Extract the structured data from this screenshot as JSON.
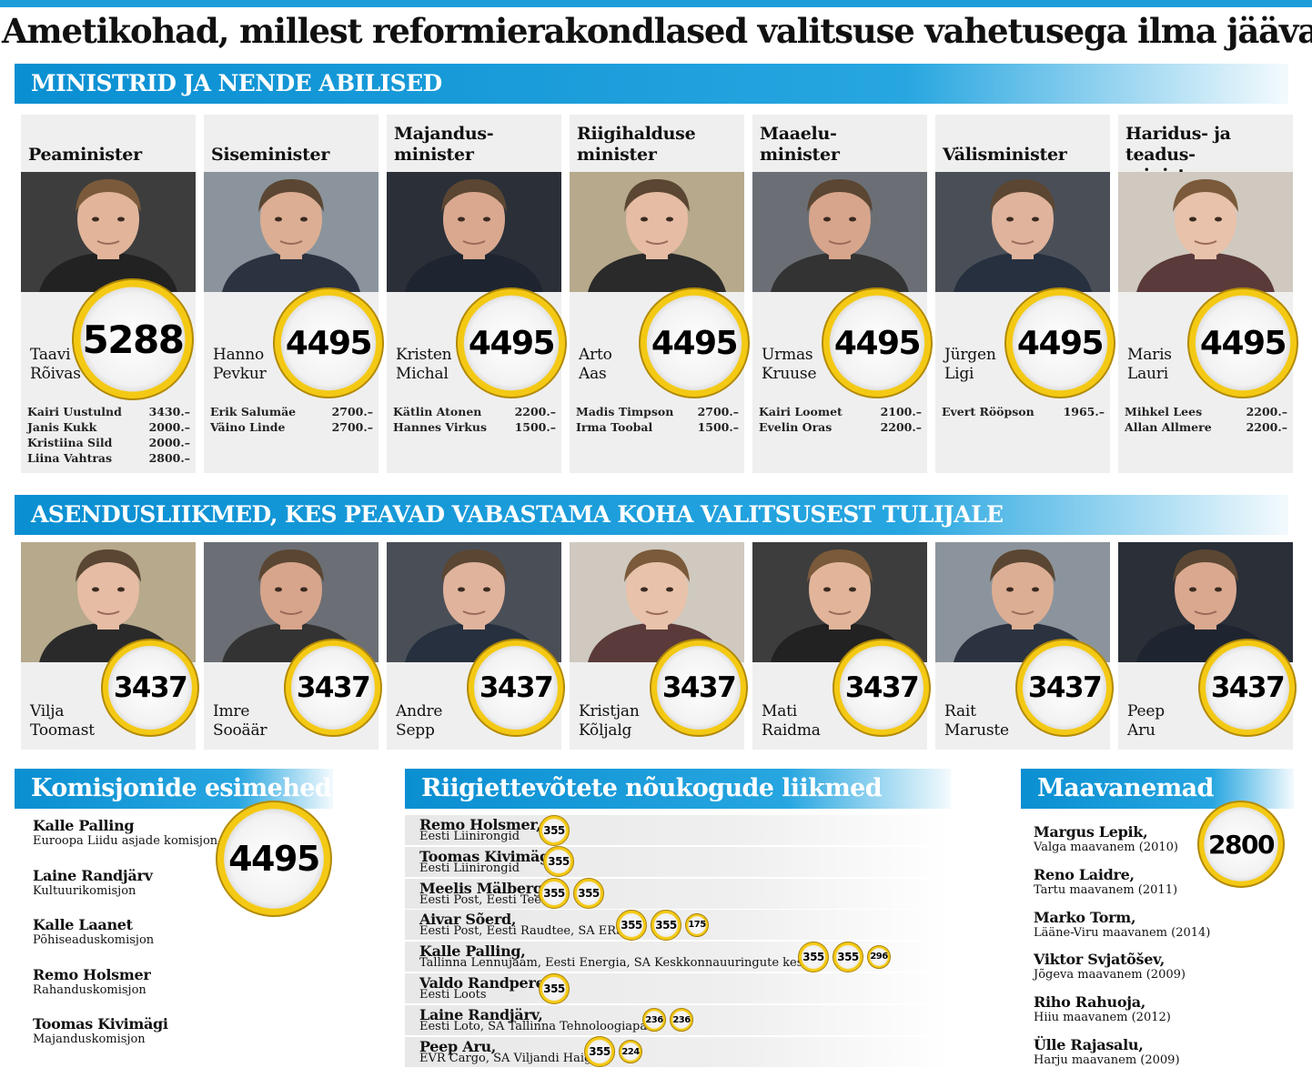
{
  "title": "Ametikohad, millest reformierakondlased valitsuse vahetusega ilma jäävad",
  "sections": {
    "ministers": "MINISTRID JA NENDE ABILISED",
    "substitutes": "ASENDUSLIIKMED, KES PEAVAD VABASTAMA KOHA VALITSUSEST TULIJALE",
    "committees": "Komisjonide esimehed",
    "boards": "Riigiettevõtete nõukogude liikmed",
    "governors": "Maavanemad"
  },
  "ministers": [
    {
      "role": "Peaminister",
      "name1": "Taavi",
      "name2": "Rõivas",
      "salary": "5288",
      "deputies": [
        {
          "name": "Kairi Uustulnd",
          "amount": "3430.–"
        },
        {
          "name": "Janis Kukk",
          "amount": "2000.–"
        },
        {
          "name": "Kristiina Sild",
          "amount": "2000.–"
        },
        {
          "name": "Liina Vahtras",
          "amount": "2800.–"
        }
      ]
    },
    {
      "role": "Siseminister",
      "name1": "Hanno",
      "name2": "Pevkur",
      "salary": "4495",
      "deputies": [
        {
          "name": "Erik Salumäe",
          "amount": "2700.–"
        },
        {
          "name": "Väino Linde",
          "amount": "2700.–"
        }
      ]
    },
    {
      "role": "Majandus-\nminister",
      "name1": "Kristen",
      "name2": "Michal",
      "salary": "4495",
      "deputies": [
        {
          "name": "Kätlin Atonen",
          "amount": "2200.–"
        },
        {
          "name": "Hannes Virkus",
          "amount": "1500.–"
        }
      ]
    },
    {
      "role": "Riigihalduse\nminister",
      "name1": "Arto",
      "name2": "Aas",
      "salary": "4495",
      "deputies": [
        {
          "name": "Madis Timpson",
          "amount": "2700.–"
        },
        {
          "name": "Irma Toobal",
          "amount": "1500.–"
        }
      ]
    },
    {
      "role": "Maaelu-\nminister",
      "name1": "Urmas",
      "name2": "Kruuse",
      "salary": "4495",
      "deputies": [
        {
          "name": "Kairi Loomet",
          "amount": "2100.–"
        },
        {
          "name": "Evelin Oras",
          "amount": "2200.–"
        }
      ]
    },
    {
      "role": "Välisminister",
      "name1": "Jürgen",
      "name2": "Ligi",
      "salary": "4495",
      "deputies": [
        {
          "name": "Evert Rööpson",
          "amount": "1965.–"
        }
      ]
    },
    {
      "role": "Haridus- ja teadus-\nminister",
      "name1": "Maris",
      "name2": "Lauri",
      "salary": "4495",
      "deputies": [
        {
          "name": "Mihkel Lees",
          "amount": "2200.–"
        },
        {
          "name": "Allan Allmere",
          "amount": "2200.–"
        }
      ]
    }
  ],
  "substitutes": [
    {
      "name1": "Vilja",
      "name2": "Toomast",
      "salary": "3437"
    },
    {
      "name1": "Imre",
      "name2": "Sooäär",
      "salary": "3437"
    },
    {
      "name1": "Andre",
      "name2": "Sepp",
      "salary": "3437"
    },
    {
      "name1": "Kristjan",
      "name2": "Kõljalg",
      "salary": "3437"
    },
    {
      "name1": "Mati",
      "name2": "Raidma",
      "salary": "3437"
    },
    {
      "name1": "Rait",
      "name2": "Maruste",
      "salary": "3437"
    },
    {
      "name1": "Peep",
      "name2": "Aru",
      "salary": "3437"
    }
  ],
  "committees": {
    "salary": "4495",
    "items": [
      {
        "name": "Kalle Palling",
        "committee": "Euroopa Liidu asjade komisjon"
      },
      {
        "name": "Laine Randjärv",
        "committee": "Kultuurikomisjon"
      },
      {
        "name": "Kalle Laanet",
        "committee": "Põhiseaduskomisjon"
      },
      {
        "name": "Remo Holsmer",
        "committee": "Rahanduskomisjon"
      },
      {
        "name": "Toomas Kivimägi",
        "committee": "Majanduskomisjon"
      }
    ]
  },
  "boards": [
    {
      "name": "Remo Holsmer,",
      "companies": "Eesti Liinirongid",
      "fees": [
        "355"
      ]
    },
    {
      "name": "Toomas Kivimägi,",
      "companies": "Eesti Liinirongid",
      "fees": [
        "355"
      ]
    },
    {
      "name": "Meelis Mälberg,",
      "companies": "Eesti Post, Eesti Teed",
      "fees": [
        "355",
        "355"
      ]
    },
    {
      "name": "Aivar Sõerd,",
      "companies": "Eesti Post, Eesti Raudtee, SA ERSO",
      "fees": [
        "355",
        "355",
        "175"
      ]
    },
    {
      "name": "Kalle Palling,",
      "companies": "Tallinna Lennujaam, Eesti Energia, SA Keskkonnauuringute keskus",
      "fees": [
        "355",
        "355",
        "296"
      ]
    },
    {
      "name": "Valdo Randpere,",
      "companies": "Eesti Loots",
      "fees": [
        "355"
      ]
    },
    {
      "name": "Laine Randjärv,",
      "companies": "Eesti Loto, SA Tallinna Tehnoloogiapark",
      "fees": [
        "236",
        "236"
      ]
    },
    {
      "name": "Peep Aru,",
      "companies": "EVR Cargo, SA Viljandi Haigla",
      "fees": [
        "355",
        "224"
      ]
    }
  ],
  "governors": {
    "salary": "2800",
    "items": [
      {
        "name": "Margus Lepik,",
        "county": "Valga maavanem (2010)"
      },
      {
        "name": "Reno Laidre,",
        "county": "Tartu maavanem (2011)"
      },
      {
        "name": "Marko Torm,",
        "county": "Lääne-Viru maavanem (2014)"
      },
      {
        "name": "Viktor Svjatõšev,",
        "county": "Jõgeva maavanem (2009)"
      },
      {
        "name": "Riho Rahuoja,",
        "county": "Hiiu maavanem (2012)"
      },
      {
        "name": "Ülle Rajasalu,",
        "county": "Harju maavanem (2009)"
      }
    ]
  },
  "colors": {
    "accent": "#1d9ed9",
    "coin_gold": "#f4c914",
    "card_bg": "#efefef"
  }
}
